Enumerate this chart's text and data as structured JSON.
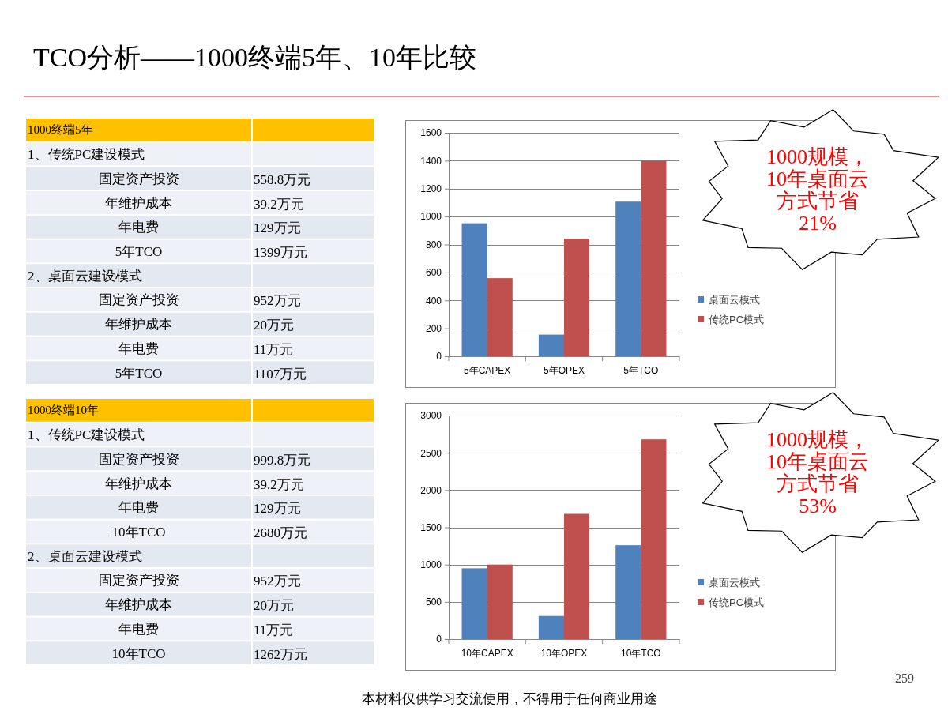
{
  "chart_data": [
    {
      "type": "other",
      "title": "TCO分析——1000终端5年、10年比较"
    },
    {
      "type": "other",
      "title": "1000终端5年",
      "categories": [
        "1、传统PC建设模式",
        "固定资产投资",
        "年维护成本",
        "年电费",
        "5年TCO",
        "2、桌面云建设模式",
        "固定资产投资",
        "年维护成本",
        "年电费",
        "5年TCO"
      ],
      "value_labels": [
        null,
        "558.8万元",
        "39.2万元",
        "129万元",
        "1399万元",
        null,
        "952万元",
        "20万元",
        "11万元",
        "1107万元"
      ]
    },
    {
      "type": "bar",
      "categories": [
        "5年CAPEX",
        "5年OPEX",
        "5年TCO"
      ],
      "series": [
        {
          "name": "桌面云模式",
          "color": "#4f81bd",
          "values": [
            952,
            155,
            1107
          ]
        },
        {
          "name": "传统PC模式",
          "color": "#c0504d",
          "values": [
            559,
            841,
            1399
          ]
        }
      ],
      "ylim": [
        0,
        1600
      ],
      "yticks": [
        0,
        200,
        400,
        600,
        800,
        1000,
        1200,
        1400,
        1600
      ],
      "grid": "y",
      "legend": "right",
      "annotations": [
        "1000规模，10年桌面云方式节省21%"
      ]
    },
    {
      "type": "other",
      "title": "1000终端10年",
      "categories": [
        "1、传统PC建设模式",
        "固定资产投资",
        "年维护成本",
        "年电费",
        "10年TCO",
        "2、桌面云建设模式",
        "固定资产投资",
        "年维护成本",
        "年电费",
        "10年TCO"
      ],
      "value_labels": [
        null,
        "999.8万元",
        "39.2万元",
        "129万元",
        "2680万元",
        null,
        "952万元",
        "20万元",
        "11万元",
        "1262万元"
      ]
    },
    {
      "type": "bar",
      "categories": [
        "10年CAPEX",
        "10年OPEX",
        "10年TCO"
      ],
      "series": [
        {
          "name": "桌面云模式",
          "color": "#4f81bd",
          "values": [
            950,
            310,
            1260
          ]
        },
        {
          "name": "传统PC模式",
          "color": "#c0504d",
          "values": [
            1000,
            1680,
            2680
          ]
        }
      ],
      "ylim": [
        0,
        3000
      ],
      "yticks": [
        0,
        500,
        1000,
        1500,
        2000,
        2500,
        3000
      ],
      "grid": "y",
      "legend": "right",
      "annotations": [
        "1000规模，10年桌面云方式节省53%"
      ]
    },
    {
      "type": "other",
      "annotations": [
        "本材料仅供学习交流使用，不得用于任何商业用途",
        "259"
      ]
    }
  ]
}
